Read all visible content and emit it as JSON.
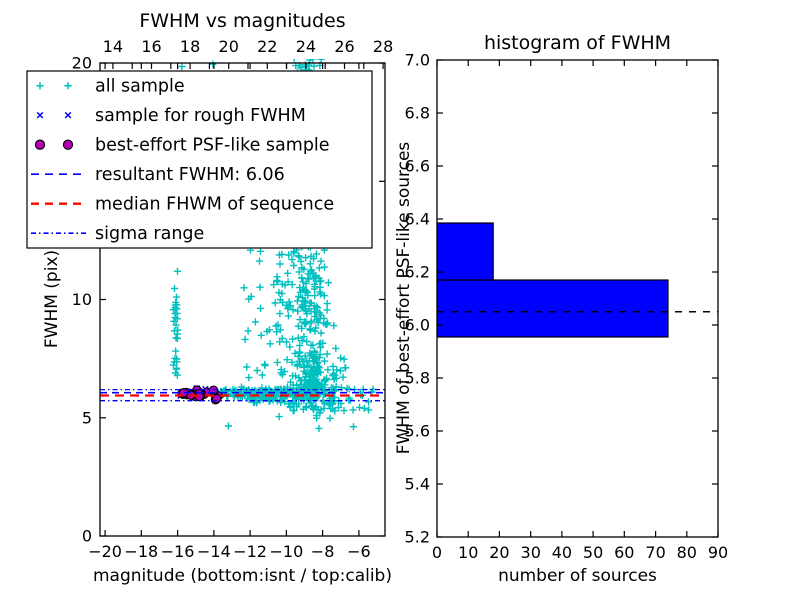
{
  "figure": {
    "background": "#ffffff"
  },
  "chart_data": [
    {
      "type": "scatter",
      "title": "FWHM vs magnitudes",
      "xlabel": "magnitude (bottom:isnt / top:calib)",
      "ylabel": "FWHM (pix)",
      "xlim": [
        -20.28,
        -4.56
      ],
      "ylim": [
        0,
        20
      ],
      "grid": false,
      "xticks": [
        {
          "v": -20,
          "label": "−20"
        },
        {
          "v": -18,
          "label": "−18"
        },
        {
          "v": -16,
          "label": "−16"
        },
        {
          "v": -14,
          "label": "−14"
        },
        {
          "v": -12,
          "label": "−12"
        },
        {
          "v": -10,
          "label": "−10"
        },
        {
          "v": -8,
          "label": "−8"
        },
        {
          "v": -6,
          "label": "−6"
        }
      ],
      "yticks": [
        {
          "v": 0,
          "label": "0"
        },
        {
          "v": 5,
          "label": "5"
        },
        {
          "v": 10,
          "label": "10"
        },
        {
          "v": 15,
          "label": "15"
        },
        {
          "v": 20,
          "label": "20"
        }
      ],
      "top_axis": {
        "range": [
          13.33,
          28.1
        ],
        "ticks": [
          {
            "v": 14,
            "label": "14"
          },
          {
            "v": 16,
            "label": "16"
          },
          {
            "v": 18,
            "label": "18"
          },
          {
            "v": 20,
            "label": "20"
          },
          {
            "v": 22,
            "label": "22"
          },
          {
            "v": 24,
            "label": "24"
          },
          {
            "v": 26,
            "label": "26"
          },
          {
            "v": 28,
            "label": "28"
          }
        ],
        "minor_ticks": [
          15,
          17,
          19,
          21,
          23,
          25,
          27
        ]
      },
      "series": [
        {
          "name": "all sample",
          "marker": "plus",
          "color": "#00bfbf",
          "seed": 101,
          "clusters": [
            {
              "n": 14,
              "x": [
                "n",
                -16.1,
                0.06
              ],
              "y": [
                "n",
                8.9,
                0.75
              ]
            },
            {
              "n": 16,
              "x": [
                "n",
                -16.08,
                0.07
              ],
              "y": [
                "u",
                6.35,
                12.3
              ]
            },
            {
              "n": 6,
              "x": [
                "n",
                -16.0,
                0.12
              ],
              "y": [
                "u",
                12.5,
                20.0
              ]
            },
            {
              "n": 150,
              "x": [
                "u",
                -13.75,
                -7.8
              ],
              "y": [
                "n",
                6.04,
                0.1
              ]
            },
            {
              "n": 40,
              "x": [
                "u",
                -13.2,
                -8.2
              ],
              "y": [
                "n",
                6.06,
                0.16
              ]
            },
            {
              "n": 18,
              "x": [
                "u",
                -7.8,
                -5.2
              ],
              "y": [
                "n",
                6.05,
                0.18
              ]
            },
            {
              "n": 230,
              "x": [
                "n",
                -8.55,
                0.5
              ],
              "y": [
                "p",
                6.25,
                6.8,
                2.2
              ]
            },
            {
              "n": 130,
              "x": [
                "n",
                -8.95,
                0.42
              ],
              "y": [
                "u",
                9.5,
                20.25
              ]
            },
            {
              "n": 35,
              "x": [
                "u",
                -10.6,
                -9.3
              ],
              "y": [
                "u",
                6.3,
                12.0
              ]
            },
            {
              "n": 30,
              "x": [
                "u",
                -12.6,
                -9.8
              ],
              "y": [
                "u",
                6.5,
                12.2
              ]
            },
            {
              "n": 25,
              "x": [
                "u",
                -11.9,
                -9.9
              ],
              "y": [
                "u",
                5.6,
                5.95
              ]
            },
            {
              "n": 30,
              "x": [
                "u",
                -9.9,
                -8.3
              ],
              "y": [
                "u",
                5.3,
                5.95
              ]
            },
            {
              "n": 25,
              "x": [
                "u",
                -8.5,
                -7.3
              ],
              "y": [
                "u",
                4.95,
                5.9
              ]
            },
            {
              "n": 10,
              "x": [
                "u",
                -7.3,
                -5.4
              ],
              "y": [
                "u",
                5.1,
                5.9
              ]
            },
            {
              "n": 12,
              "x": [
                "u",
                -7.7,
                -6.7
              ],
              "y": [
                "u",
                6.3,
                7.7
              ]
            },
            {
              "n": 10,
              "x": [
                "n",
                -8.8,
                0.35
              ],
              "y": [
                "u",
                19.5,
                20.2
              ]
            }
          ],
          "points": [
            [
              -13.2,
              4.65
            ],
            [
              -10.4,
              5.05
            ],
            [
              -8.2,
              4.55
            ],
            [
              -6.3,
              4.62
            ],
            [
              -5.7,
              5.4
            ],
            [
              -15.76,
              19.85
            ],
            [
              -14.05,
              19.95
            ],
            [
              -12.1,
              13.8
            ]
          ]
        },
        {
          "name": "sample for rough FWHM",
          "marker": "x",
          "color": "#0000ff",
          "seed": 202,
          "clusters": [
            {
              "n": 15,
              "x": [
                "u",
                -16.05,
                -13.85
              ],
              "y": [
                "n",
                6.05,
                0.1
              ]
            }
          ],
          "points": []
        },
        {
          "name": "best-effort PSF-like sample",
          "marker": "circle",
          "color": "#b400b4",
          "edge": "#000000",
          "seed": 303,
          "clusters": [
            {
              "n": 26,
              "x": [
                "u",
                -16.1,
                -13.75
              ],
              "y": [
                "n",
                5.98,
                0.08
              ]
            }
          ],
          "points": []
        }
      ],
      "hlines": [
        {
          "name": "resultant-fwhm-line",
          "y": 6.06,
          "color": "#0000ff",
          "dash": "7,5",
          "w": 1.6
        },
        {
          "name": "median-fwhm-line",
          "y": 5.94,
          "color": "#ff0000",
          "dash": "9,6",
          "w": 2.2
        },
        {
          "name": "sigma-upper-line",
          "y": 6.19,
          "color": "#0000ff",
          "dash": "5,3,1.5,3",
          "w": 1.3
        },
        {
          "name": "sigma-lower-line",
          "y": 5.72,
          "color": "#0000ff",
          "dash": "5,3,1.5,3",
          "w": 1.3
        }
      ],
      "legend": {
        "items": [
          {
            "label": "all sample",
            "glyph": "plus",
            "color": "#00bfbf"
          },
          {
            "label": "sample for rough FWHM",
            "glyph": "x",
            "color": "#0000ff"
          },
          {
            "label": "best-effort PSF-like sample",
            "glyph": "circle",
            "color": "#b400b4",
            "edge": "#000000"
          },
          {
            "label": "resultant FWHM: 6.06",
            "glyph": "dashed",
            "color": "#0000ff"
          },
          {
            "label": "median FHWM of sequence",
            "glyph": "dashed",
            "color": "#ff0000"
          },
          {
            "label": "sigma range",
            "glyph": "dashdot",
            "color": "#0000ff"
          }
        ]
      }
    },
    {
      "type": "bar-horizontal",
      "title": "histogram of FWHM",
      "xlabel": "number of sources",
      "ylabel": "FWHM of best-effort PSF-like sources",
      "xlim": [
        0,
        90
      ],
      "ylim": [
        5.2,
        7.0
      ],
      "grid": false,
      "bar_color": "#0000ff",
      "bar_edge": "#000000",
      "bins": [
        {
          "from": 5.955,
          "to": 6.17,
          "count": 74
        },
        {
          "from": 6.17,
          "to": 6.385,
          "count": 18
        }
      ],
      "marker_line": {
        "y": 6.05,
        "color": "#000000",
        "dash": "7,7",
        "w": 1.5
      },
      "xticks": [
        {
          "v": 0,
          "label": "0"
        },
        {
          "v": 10,
          "label": "10"
        },
        {
          "v": 20,
          "label": "20"
        },
        {
          "v": 30,
          "label": "30"
        },
        {
          "v": 40,
          "label": "40"
        },
        {
          "v": 50,
          "label": "50"
        },
        {
          "v": 60,
          "label": "60"
        },
        {
          "v": 70,
          "label": "70"
        },
        {
          "v": 80,
          "label": "80"
        },
        {
          "v": 90,
          "label": "90"
        }
      ],
      "yticks": [
        {
          "v": 5.2,
          "label": "5.2"
        },
        {
          "v": 5.4,
          "label": "5.4"
        },
        {
          "v": 5.6,
          "label": "5.6"
        },
        {
          "v": 5.8,
          "label": "5.8"
        },
        {
          "v": 6.0,
          "label": "6.0"
        },
        {
          "v": 6.2,
          "label": "6.2"
        },
        {
          "v": 6.4,
          "label": "6.4"
        },
        {
          "v": 6.6,
          "label": "6.6"
        },
        {
          "v": 6.8,
          "label": "6.8"
        },
        {
          "v": 7.0,
          "label": "7.0"
        }
      ]
    }
  ]
}
